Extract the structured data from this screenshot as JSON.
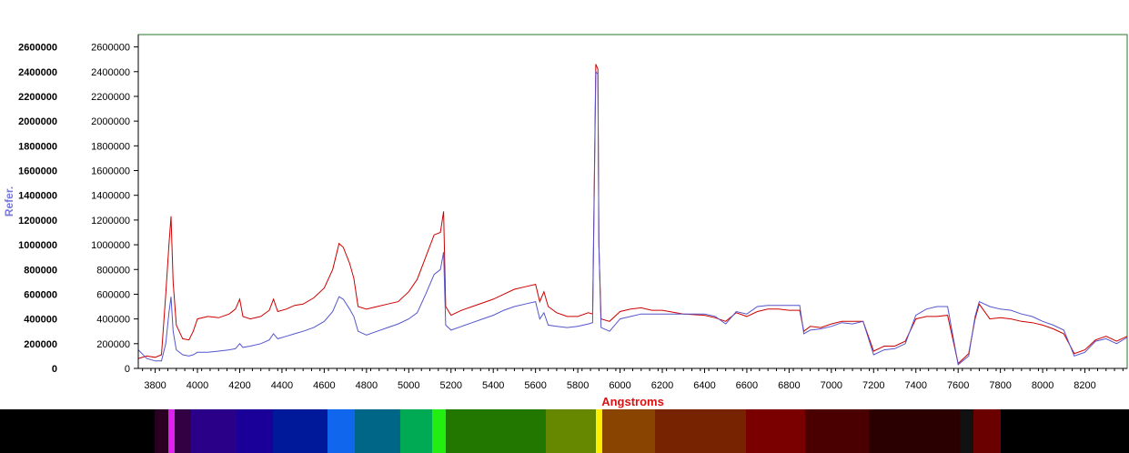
{
  "chart_data": {
    "type": "line",
    "title": "",
    "xlabel": "Angstroms",
    "ylabel": "Refer.",
    "xlim": [
      3720,
      8400
    ],
    "ylim": [
      0,
      2700000
    ],
    "x_ticks": [
      3800,
      4000,
      4200,
      4400,
      4600,
      4800,
      5000,
      5200,
      5400,
      5600,
      5800,
      6000,
      6200,
      6400,
      6600,
      6800,
      7000,
      7200,
      7400,
      7600,
      7800,
      8000,
      8200
    ],
    "x_tick_labels": [
      "3800",
      "4000",
      "4200",
      "4400",
      "4600",
      "4800",
      "5000",
      "5200",
      "5400",
      "5600",
      "5800",
      "6000",
      "6200",
      "6400",
      "6600",
      "6800",
      "7000",
      "7200",
      "7400",
      "7600",
      "7800",
      "8000",
      "8200"
    ],
    "y_ticks": [
      0,
      200000,
      400000,
      600000,
      800000,
      1000000,
      1200000,
      1400000,
      1600000,
      1800000,
      2000000,
      2200000,
      2400000,
      2600000
    ],
    "y_tick_labels": [
      "0",
      "200000",
      "400000",
      "600000",
      "800000",
      "1000000",
      "1200000",
      "1400000",
      "1600000",
      "1800000",
      "2000000",
      "2200000",
      "2400000",
      "2600000"
    ],
    "secondary_y_tick_labels": [
      "0",
      "200000",
      "400000",
      "600000",
      "800000",
      "1000000",
      "1200000",
      "1400000",
      "1600000",
      "1800000",
      "2000000",
      "2200000",
      "2400000",
      "2600000"
    ],
    "grid": false,
    "legend": "none",
    "series": [
      {
        "color": "#cc0000",
        "points": [
          [
            3720,
            80000
          ],
          [
            3760,
            100000
          ],
          [
            3800,
            90000
          ],
          [
            3830,
            110000
          ],
          [
            3850,
            600000
          ],
          [
            3865,
            1000000
          ],
          [
            3875,
            1230000
          ],
          [
            3885,
            700000
          ],
          [
            3900,
            350000
          ],
          [
            3930,
            240000
          ],
          [
            3960,
            230000
          ],
          [
            3980,
            300000
          ],
          [
            4000,
            400000
          ],
          [
            4050,
            420000
          ],
          [
            4100,
            410000
          ],
          [
            4150,
            440000
          ],
          [
            4180,
            480000
          ],
          [
            4200,
            560000
          ],
          [
            4215,
            420000
          ],
          [
            4250,
            400000
          ],
          [
            4300,
            420000
          ],
          [
            4340,
            470000
          ],
          [
            4360,
            560000
          ],
          [
            4380,
            460000
          ],
          [
            4420,
            480000
          ],
          [
            4460,
            510000
          ],
          [
            4500,
            520000
          ],
          [
            4550,
            570000
          ],
          [
            4600,
            650000
          ],
          [
            4640,
            800000
          ],
          [
            4670,
            1010000
          ],
          [
            4690,
            980000
          ],
          [
            4720,
            850000
          ],
          [
            4740,
            730000
          ],
          [
            4760,
            500000
          ],
          [
            4800,
            480000
          ],
          [
            4850,
            500000
          ],
          [
            4900,
            520000
          ],
          [
            4950,
            540000
          ],
          [
            5000,
            620000
          ],
          [
            5040,
            720000
          ],
          [
            5080,
            900000
          ],
          [
            5120,
            1080000
          ],
          [
            5150,
            1100000
          ],
          [
            5165,
            1270000
          ],
          [
            5175,
            500000
          ],
          [
            5200,
            430000
          ],
          [
            5250,
            470000
          ],
          [
            5300,
            500000
          ],
          [
            5350,
            530000
          ],
          [
            5400,
            560000
          ],
          [
            5450,
            600000
          ],
          [
            5500,
            640000
          ],
          [
            5550,
            660000
          ],
          [
            5600,
            680000
          ],
          [
            5620,
            540000
          ],
          [
            5640,
            620000
          ],
          [
            5660,
            500000
          ],
          [
            5700,
            450000
          ],
          [
            5750,
            420000
          ],
          [
            5800,
            420000
          ],
          [
            5850,
            450000
          ],
          [
            5870,
            440000
          ],
          [
            5885,
            2460000
          ],
          [
            5895,
            2420000
          ],
          [
            5900,
            1000000
          ],
          [
            5910,
            400000
          ],
          [
            5950,
            380000
          ],
          [
            6000,
            460000
          ],
          [
            6050,
            480000
          ],
          [
            6100,
            490000
          ],
          [
            6150,
            470000
          ],
          [
            6200,
            470000
          ],
          [
            6300,
            440000
          ],
          [
            6400,
            430000
          ],
          [
            6450,
            410000
          ],
          [
            6500,
            380000
          ],
          [
            6550,
            450000
          ],
          [
            6600,
            420000
          ],
          [
            6650,
            460000
          ],
          [
            6700,
            480000
          ],
          [
            6750,
            480000
          ],
          [
            6800,
            470000
          ],
          [
            6850,
            470000
          ],
          [
            6870,
            300000
          ],
          [
            6900,
            340000
          ],
          [
            6950,
            330000
          ],
          [
            7000,
            360000
          ],
          [
            7050,
            380000
          ],
          [
            7100,
            380000
          ],
          [
            7150,
            380000
          ],
          [
            7200,
            140000
          ],
          [
            7250,
            180000
          ],
          [
            7300,
            180000
          ],
          [
            7350,
            220000
          ],
          [
            7400,
            400000
          ],
          [
            7450,
            420000
          ],
          [
            7500,
            420000
          ],
          [
            7550,
            430000
          ],
          [
            7600,
            40000
          ],
          [
            7650,
            120000
          ],
          [
            7680,
            400000
          ],
          [
            7700,
            520000
          ],
          [
            7750,
            400000
          ],
          [
            7800,
            410000
          ],
          [
            7850,
            400000
          ],
          [
            7900,
            380000
          ],
          [
            7950,
            370000
          ],
          [
            8000,
            350000
          ],
          [
            8050,
            320000
          ],
          [
            8100,
            280000
          ],
          [
            8150,
            120000
          ],
          [
            8200,
            150000
          ],
          [
            8250,
            230000
          ],
          [
            8300,
            260000
          ],
          [
            8350,
            220000
          ],
          [
            8400,
            260000
          ]
        ]
      },
      {
        "color": "#5555cc",
        "points": [
          [
            3720,
            150000
          ],
          [
            3760,
            80000
          ],
          [
            3800,
            60000
          ],
          [
            3830,
            60000
          ],
          [
            3850,
            200000
          ],
          [
            3865,
            450000
          ],
          [
            3875,
            580000
          ],
          [
            3885,
            300000
          ],
          [
            3900,
            150000
          ],
          [
            3930,
            110000
          ],
          [
            3960,
            100000
          ],
          [
            3980,
            110000
          ],
          [
            4000,
            130000
          ],
          [
            4050,
            130000
          ],
          [
            4100,
            140000
          ],
          [
            4150,
            150000
          ],
          [
            4180,
            160000
          ],
          [
            4200,
            200000
          ],
          [
            4215,
            170000
          ],
          [
            4250,
            180000
          ],
          [
            4300,
            200000
          ],
          [
            4340,
            230000
          ],
          [
            4360,
            280000
          ],
          [
            4380,
            240000
          ],
          [
            4420,
            260000
          ],
          [
            4460,
            280000
          ],
          [
            4500,
            300000
          ],
          [
            4550,
            330000
          ],
          [
            4600,
            380000
          ],
          [
            4640,
            460000
          ],
          [
            4670,
            580000
          ],
          [
            4690,
            560000
          ],
          [
            4720,
            480000
          ],
          [
            4740,
            420000
          ],
          [
            4760,
            300000
          ],
          [
            4800,
            270000
          ],
          [
            4850,
            300000
          ],
          [
            4900,
            330000
          ],
          [
            4950,
            360000
          ],
          [
            5000,
            400000
          ],
          [
            5040,
            450000
          ],
          [
            5080,
            600000
          ],
          [
            5120,
            760000
          ],
          [
            5150,
            800000
          ],
          [
            5165,
            940000
          ],
          [
            5175,
            350000
          ],
          [
            5200,
            310000
          ],
          [
            5250,
            340000
          ],
          [
            5300,
            370000
          ],
          [
            5350,
            400000
          ],
          [
            5400,
            430000
          ],
          [
            5450,
            470000
          ],
          [
            5500,
            500000
          ],
          [
            5550,
            520000
          ],
          [
            5600,
            540000
          ],
          [
            5620,
            400000
          ],
          [
            5640,
            450000
          ],
          [
            5660,
            350000
          ],
          [
            5700,
            340000
          ],
          [
            5750,
            330000
          ],
          [
            5800,
            340000
          ],
          [
            5850,
            360000
          ],
          [
            5870,
            370000
          ],
          [
            5885,
            2400000
          ],
          [
            5895,
            2380000
          ],
          [
            5900,
            1000000
          ],
          [
            5910,
            330000
          ],
          [
            5950,
            300000
          ],
          [
            6000,
            400000
          ],
          [
            6050,
            420000
          ],
          [
            6100,
            440000
          ],
          [
            6150,
            440000
          ],
          [
            6200,
            440000
          ],
          [
            6300,
            440000
          ],
          [
            6400,
            440000
          ],
          [
            6450,
            420000
          ],
          [
            6500,
            360000
          ],
          [
            6550,
            460000
          ],
          [
            6600,
            440000
          ],
          [
            6650,
            500000
          ],
          [
            6700,
            510000
          ],
          [
            6750,
            510000
          ],
          [
            6800,
            510000
          ],
          [
            6850,
            510000
          ],
          [
            6870,
            280000
          ],
          [
            6900,
            310000
          ],
          [
            6950,
            320000
          ],
          [
            7000,
            340000
          ],
          [
            7050,
            370000
          ],
          [
            7100,
            360000
          ],
          [
            7150,
            380000
          ],
          [
            7200,
            110000
          ],
          [
            7250,
            150000
          ],
          [
            7300,
            160000
          ],
          [
            7350,
            200000
          ],
          [
            7400,
            430000
          ],
          [
            7450,
            480000
          ],
          [
            7500,
            500000
          ],
          [
            7550,
            500000
          ],
          [
            7600,
            30000
          ],
          [
            7650,
            100000
          ],
          [
            7680,
            420000
          ],
          [
            7700,
            540000
          ],
          [
            7750,
            500000
          ],
          [
            7800,
            480000
          ],
          [
            7850,
            470000
          ],
          [
            7900,
            440000
          ],
          [
            7950,
            420000
          ],
          [
            8000,
            380000
          ],
          [
            8050,
            350000
          ],
          [
            8100,
            310000
          ],
          [
            8150,
            100000
          ],
          [
            8200,
            130000
          ],
          [
            8250,
            220000
          ],
          [
            8300,
            240000
          ],
          [
            8350,
            200000
          ],
          [
            8400,
            250000
          ]
        ]
      }
    ]
  },
  "spectrum_strip": {
    "bands": [
      {
        "from": 0,
        "to": 170,
        "color": "#000000"
      },
      {
        "from": 170,
        "to": 185,
        "color": "#2a0022"
      },
      {
        "from": 185,
        "to": 192,
        "color": "#dd22ee"
      },
      {
        "from": 192,
        "to": 210,
        "color": "#330044"
      },
      {
        "from": 210,
        "to": 260,
        "color": "#2a0088"
      },
      {
        "from": 260,
        "to": 300,
        "color": "#1a0099"
      },
      {
        "from": 300,
        "to": 360,
        "color": "#00189a"
      },
      {
        "from": 360,
        "to": 390,
        "color": "#1166ee"
      },
      {
        "from": 390,
        "to": 440,
        "color": "#006688"
      },
      {
        "from": 440,
        "to": 475,
        "color": "#00aa55"
      },
      {
        "from": 475,
        "to": 490,
        "color": "#22ee11"
      },
      {
        "from": 490,
        "to": 600,
        "color": "#227700"
      },
      {
        "from": 600,
        "to": 655,
        "color": "#668800"
      },
      {
        "from": 655,
        "to": 662,
        "color": "#ffee00"
      },
      {
        "from": 662,
        "to": 720,
        "color": "#884400"
      },
      {
        "from": 720,
        "to": 820,
        "color": "#772200"
      },
      {
        "from": 820,
        "to": 885,
        "color": "#7a0000"
      },
      {
        "from": 885,
        "to": 955,
        "color": "#4a0000"
      },
      {
        "from": 955,
        "to": 1055,
        "color": "#2a0000"
      },
      {
        "from": 1055,
        "to": 1070,
        "color": "#111111"
      },
      {
        "from": 1070,
        "to": 1100,
        "color": "#6a0000"
      },
      {
        "from": 1100,
        "to": 1241,
        "color": "#000000"
      }
    ]
  }
}
